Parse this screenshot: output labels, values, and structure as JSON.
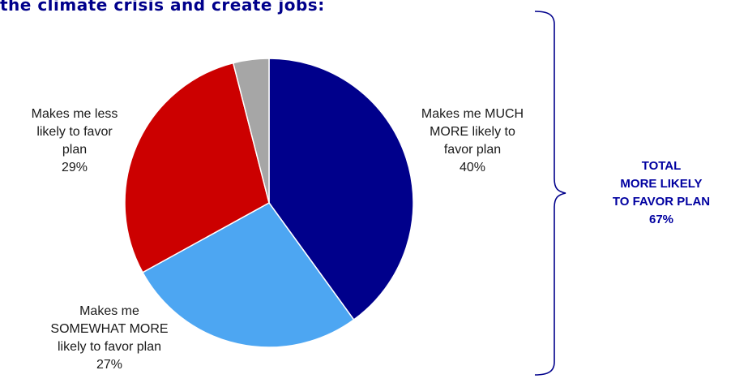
{
  "title": "the climate crisis and create jobs:",
  "chart_data": {
    "type": "pie",
    "slices": [
      {
        "label_lines": [
          "Makes me MUCH",
          "MORE likely to",
          "favor plan"
        ],
        "value": 40,
        "pct": "40%",
        "color": "#00008b"
      },
      {
        "label_lines": [
          "Makes me",
          "SOMEWHAT MORE",
          "likely to favor plan"
        ],
        "value": 27,
        "pct": "27%",
        "color": "#4da6f2"
      },
      {
        "label_lines": [
          "Makes me less",
          "likely to favor",
          "plan"
        ],
        "value": 29,
        "pct": "29%",
        "color": "#cc0000"
      },
      {
        "label_lines": [],
        "value": 4,
        "pct": "",
        "color": "#a6a6a6"
      }
    ]
  },
  "total_box": {
    "lines": [
      "TOTAL",
      "MORE LIKELY",
      "TO FAVOR PLAN"
    ],
    "value": "67%",
    "color": "#00008b"
  }
}
